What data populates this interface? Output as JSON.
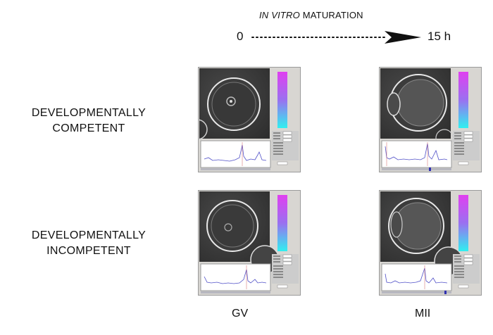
{
  "header": {
    "title_italic": "IN VITRO",
    "title_rest": " MATURATION",
    "start_label": "0",
    "end_label": "15 h"
  },
  "rows": [
    {
      "label_line1": "DEVELOPMENTALLY",
      "label_line2": "COMPETENT"
    },
    {
      "label_line1": "DEVELOPMENTALLY",
      "label_line2": "INCOMPETENT"
    }
  ],
  "columns": [
    {
      "label": "GV"
    },
    {
      "label": "MII"
    }
  ],
  "colors": {
    "colorbar_top": "#e040f0",
    "colorbar_bottom": "#30f0f0",
    "trace": "#5050c8",
    "cell_background": "#3a3a3a"
  }
}
